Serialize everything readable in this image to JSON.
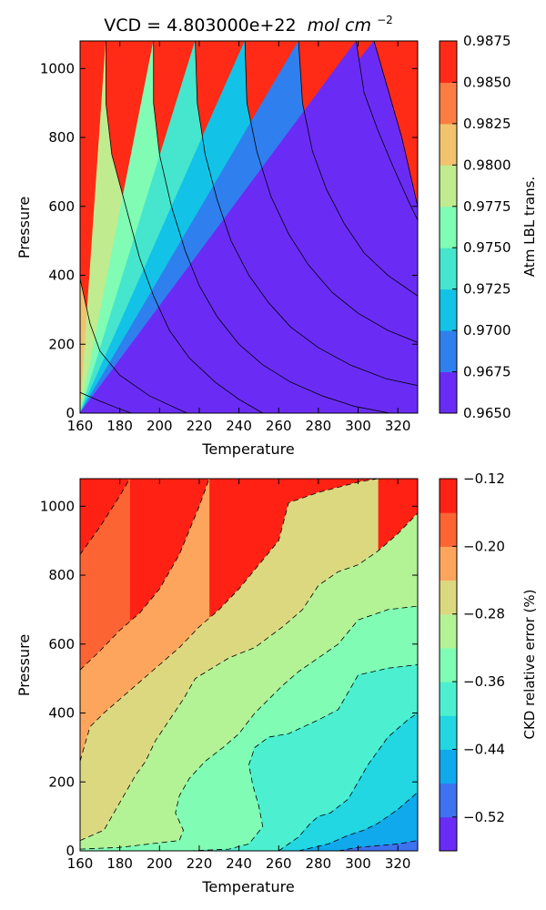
{
  "chart_data": [
    {
      "type": "contour",
      "title": "VCD = 4.803000e+22",
      "title_math": "mol cm",
      "title_exponent": "−2",
      "xlabel": "Temperature",
      "ylabel": "Pressure",
      "xlim": [
        160,
        330
      ],
      "ylim": [
        0,
        1080
      ],
      "xticks": [
        "160",
        "180",
        "200",
        "220",
        "240",
        "260",
        "280",
        "300",
        "320"
      ],
      "yticks": [
        "0",
        "200",
        "400",
        "600",
        "800",
        "1000"
      ],
      "colorbar": {
        "label": "Atm LBL trans.",
        "levels": [
          0.965,
          0.9675,
          0.97,
          0.9725,
          0.975,
          0.9775,
          0.98,
          0.9825,
          0.985,
          0.9875
        ],
        "ticklabels": [
          "0.9650",
          "0.9675",
          "0.9700",
          "0.9725",
          "0.9750",
          "0.9775",
          "0.9800",
          "0.9825",
          "0.9850",
          "0.9875"
        ],
        "colors": [
          "#6a2cf5",
          "#2f80ee",
          "#12c3e7",
          "#45e6cd",
          "#80fcb4",
          "#c0ec8f",
          "#f1c36f",
          "#fc7d44",
          "#ff2b16"
        ]
      },
      "contour_lines": [
        {
          "level": 0.985,
          "points": [
            [
              160,
              60
            ],
            [
              170,
              35
            ],
            [
              180,
              12
            ],
            [
              186,
              0
            ]
          ]
        },
        {
          "level": 0.9825,
          "points": [
            [
              160,
              390
            ],
            [
              165,
              260
            ],
            [
              170,
              180
            ],
            [
              180,
              110
            ],
            [
              195,
              50
            ],
            [
              210,
              10
            ],
            [
              214,
              0
            ]
          ]
        },
        {
          "level": 0.98,
          "points": [
            [
              173,
              1080
            ],
            [
              173,
              900
            ],
            [
              176,
              750
            ],
            [
              183,
              600
            ],
            [
              190,
              450
            ],
            [
              197,
              340
            ],
            [
              205,
              240
            ],
            [
              215,
              160
            ],
            [
              228,
              90
            ],
            [
              240,
              40
            ],
            [
              252,
              0
            ]
          ]
        },
        {
          "level": 0.9775,
          "points": [
            [
              197,
              1080
            ],
            [
              197,
              900
            ],
            [
              200,
              750
            ],
            [
              206,
              600
            ],
            [
              213,
              470
            ],
            [
              220,
              370
            ],
            [
              229,
              280
            ],
            [
              240,
              200
            ],
            [
              252,
              140
            ],
            [
              266,
              90
            ],
            [
              282,
              50
            ],
            [
              298,
              20
            ],
            [
              316,
              0
            ]
          ]
        },
        {
          "level": 0.975,
          "points": [
            [
              218,
              1080
            ],
            [
              219,
              900
            ],
            [
              223,
              750
            ],
            [
              229,
              620
            ],
            [
              236,
              500
            ],
            [
              245,
              400
            ],
            [
              255,
              320
            ],
            [
              266,
              250
            ],
            [
              280,
              190
            ],
            [
              296,
              140
            ],
            [
              314,
              100
            ],
            [
              330,
              80
            ]
          ]
        },
        {
          "level": 0.9725,
          "points": [
            [
              243,
              1080
            ],
            [
              244,
              900
            ],
            [
              249,
              760
            ],
            [
              256,
              630
            ],
            [
              265,
              520
            ],
            [
              275,
              430
            ],
            [
              287,
              350
            ],
            [
              300,
              290
            ],
            [
              315,
              240
            ],
            [
              330,
              205
            ]
          ]
        },
        {
          "level": 0.97,
          "points": [
            [
              270,
              1080
            ],
            [
              272,
              900
            ],
            [
              277,
              760
            ],
            [
              284,
              650
            ],
            [
              293,
              550
            ],
            [
              303,
              465
            ],
            [
              315,
              400
            ],
            [
              330,
              340
            ]
          ]
        },
        {
          "level": 0.9675,
          "points": [
            [
              299,
              1080
            ],
            [
              303,
              930
            ],
            [
              310,
              820
            ],
            [
              318,
              710
            ],
            [
              325,
              620
            ],
            [
              330,
              560
            ]
          ]
        },
        {
          "level": 0.965,
          "points": [
            [
              308,
              1080
            ],
            [
              315,
              940
            ],
            [
              322,
              800
            ],
            [
              328,
              650
            ],
            [
              330,
              600
            ]
          ]
        }
      ]
    },
    {
      "type": "contour",
      "xlabel": "Temperature",
      "ylabel": "Pressure",
      "xlim": [
        160,
        330
      ],
      "ylim": [
        0,
        1080
      ],
      "xticks": [
        "160",
        "180",
        "200",
        "220",
        "240",
        "260",
        "280",
        "300",
        "320"
      ],
      "yticks": [
        "0",
        "200",
        "400",
        "600",
        "800",
        "1000"
      ],
      "colorbar": {
        "label": "CKD relative error (%)",
        "levels": [
          -0.56,
          -0.52,
          -0.48,
          -0.44,
          -0.4,
          -0.36,
          -0.32,
          -0.28,
          -0.24,
          -0.2,
          -0.16,
          -0.12
        ],
        "ticklabels": [
          "−0.52",
          "−0.44",
          "−0.36",
          "−0.28",
          "−0.20",
          "−0.12"
        ],
        "tickvalues": [
          -0.52,
          -0.44,
          -0.36,
          -0.28,
          -0.2,
          -0.12
        ],
        "colors": [
          "#6a2cf5",
          "#3d72f0",
          "#0fa9ec",
          "#22d6e2",
          "#4cf0d0",
          "#80fcb4",
          "#b3f295",
          "#dcd880",
          "#fda55c",
          "#fd6434",
          "#fe2114"
        ]
      },
      "contour_lines": [
        {
          "level": -0.16,
          "points": [
            [
              160,
              860
            ],
            [
              170,
              940
            ],
            [
              180,
              1030
            ],
            [
              185,
              1080
            ]
          ]
        },
        {
          "level": -0.2,
          "points": [
            [
              160,
              525
            ],
            [
              170,
              580
            ],
            [
              180,
              640
            ],
            [
              190,
              690
            ],
            [
              200,
              760
            ],
            [
              210,
              860
            ],
            [
              220,
              1000
            ],
            [
              225,
              1080
            ]
          ]
        },
        {
          "level": -0.24,
          "points": [
            [
              160,
              260
            ],
            [
              165,
              360
            ],
            [
              172,
              400
            ],
            [
              180,
              440
            ],
            [
              190,
              490
            ],
            [
              200,
              540
            ],
            [
              210,
              590
            ],
            [
              220,
              650
            ],
            [
              230,
              700
            ],
            [
              240,
              760
            ],
            [
              250,
              830
            ],
            [
              260,
              900
            ],
            [
              265,
              1010
            ],
            [
              280,
              1040
            ],
            [
              300,
              1070
            ],
            [
              310,
              1080
            ]
          ]
        },
        {
          "level": -0.28,
          "points": [
            [
              160,
              30
            ],
            [
              172,
              60
            ],
            [
              178,
              120
            ],
            [
              182,
              160
            ],
            [
              188,
              220
            ],
            [
              193,
              260
            ],
            [
              198,
              320
            ],
            [
              205,
              380
            ],
            [
              212,
              440
            ],
            [
              218,
              500
            ],
            [
              225,
              525
            ],
            [
              235,
              560
            ],
            [
              248,
              590
            ],
            [
              255,
              620
            ],
            [
              262,
              650
            ],
            [
              272,
              700
            ],
            [
              280,
              770
            ],
            [
              290,
              810
            ],
            [
              300,
              830
            ],
            [
              310,
              870
            ],
            [
              320,
              920
            ],
            [
              330,
              980
            ]
          ]
        },
        {
          "level": -0.32,
          "points": [
            [
              160,
              5
            ],
            [
              180,
              10
            ],
            [
              195,
              20
            ],
            [
              210,
              30
            ],
            [
              212,
              60
            ],
            [
              208,
              110
            ],
            [
              210,
              160
            ],
            [
              215,
              210
            ],
            [
              223,
              260
            ],
            [
              232,
              300
            ],
            [
              240,
              340
            ],
            [
              248,
              400
            ],
            [
              255,
              440
            ],
            [
              262,
              480
            ],
            [
              270,
              520
            ],
            [
              280,
              560
            ],
            [
              290,
              600
            ],
            [
              300,
              670
            ],
            [
              315,
              700
            ],
            [
              330,
              710
            ]
          ]
        },
        {
          "level": -0.36,
          "points": [
            [
              215,
              0
            ],
            [
              235,
              5
            ],
            [
              245,
              20
            ],
            [
              252,
              70
            ],
            [
              250,
              130
            ],
            [
              247,
              190
            ],
            [
              245,
              250
            ],
            [
              248,
              300
            ],
            [
              255,
              330
            ],
            [
              265,
              340
            ],
            [
              280,
              380
            ],
            [
              290,
              410
            ],
            [
              300,
              510
            ],
            [
              315,
              530
            ],
            [
              330,
              540
            ]
          ]
        },
        {
          "level": -0.4,
          "points": [
            [
              260,
              0
            ],
            [
              270,
              40
            ],
            [
              276,
              80
            ],
            [
              280,
              100
            ],
            [
              286,
              110
            ],
            [
              295,
              150
            ],
            [
              305,
              250
            ],
            [
              315,
              330
            ],
            [
              325,
              380
            ],
            [
              330,
              400
            ]
          ]
        },
        {
          "level": -0.44,
          "points": [
            [
              270,
              0
            ],
            [
              285,
              20
            ],
            [
              295,
              45
            ],
            [
              303,
              60
            ],
            [
              310,
              80
            ],
            [
              320,
              120
            ],
            [
              330,
              170
            ]
          ]
        },
        {
          "level": -0.48,
          "points": [
            [
              290,
              0
            ],
            [
              300,
              10
            ],
            [
              310,
              15
            ],
            [
              320,
              20
            ],
            [
              330,
              30
            ]
          ]
        }
      ]
    }
  ]
}
